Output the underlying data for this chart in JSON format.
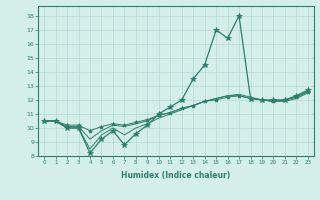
{
  "xlabel": "Humidex (Indice chaleur)",
  "x_values": [
    0,
    1,
    2,
    3,
    4,
    5,
    6,
    7,
    8,
    9,
    10,
    11,
    12,
    13,
    14,
    15,
    16,
    17,
    18,
    19,
    20,
    21,
    22,
    23
  ],
  "lines": [
    {
      "y": [
        10.5,
        10.5,
        10.0,
        10.0,
        8.2,
        9.2,
        9.8,
        8.8,
        9.6,
        10.2,
        11.0,
        11.5,
        12.0,
        13.5,
        14.5,
        17.0,
        16.4,
        18.0,
        12.1,
        12.0,
        12.0,
        12.0,
        12.3,
        12.7
      ],
      "color": "#2e7d6e",
      "marker": "*",
      "markersize": 4,
      "linewidth": 0.9
    },
    {
      "y": [
        10.5,
        10.5,
        10.0,
        10.0,
        8.5,
        9.5,
        10.0,
        9.5,
        10.0,
        10.3,
        10.7,
        11.0,
        11.3,
        11.6,
        11.9,
        12.1,
        12.3,
        12.3,
        12.1,
        12.0,
        11.9,
        11.9,
        12.1,
        12.5
      ],
      "color": "#2e7d6e",
      "marker": null,
      "markersize": 3,
      "linewidth": 0.7
    },
    {
      "y": [
        10.5,
        10.5,
        10.1,
        10.1,
        9.2,
        9.8,
        10.2,
        10.1,
        10.3,
        10.5,
        10.9,
        11.1,
        11.4,
        11.6,
        11.9,
        12.1,
        12.3,
        12.4,
        12.2,
        12.0,
        11.9,
        12.0,
        12.2,
        12.6
      ],
      "color": "#2e7d6e",
      "marker": null,
      "markersize": 3,
      "linewidth": 0.7
    },
    {
      "y": [
        10.5,
        10.5,
        10.2,
        10.2,
        9.8,
        10.1,
        10.3,
        10.2,
        10.4,
        10.6,
        10.9,
        11.1,
        11.4,
        11.6,
        11.9,
        12.0,
        12.2,
        12.3,
        12.1,
        12.0,
        11.9,
        12.0,
        12.2,
        12.6
      ],
      "color": "#2e7d6e",
      "marker": "*",
      "markersize": 3,
      "linewidth": 0.7
    }
  ],
  "xlim": [
    -0.5,
    23.5
  ],
  "ylim": [
    8,
    18.7
  ],
  "yticks": [
    8,
    9,
    10,
    11,
    12,
    13,
    14,
    15,
    16,
    17,
    18
  ],
  "xticks": [
    0,
    1,
    2,
    3,
    4,
    5,
    6,
    7,
    8,
    9,
    10,
    11,
    12,
    13,
    14,
    15,
    16,
    17,
    18,
    19,
    20,
    21,
    22,
    23
  ],
  "grid_color": "#b8d8d4",
  "bg_color": "#d4eeea",
  "line_color": "#2e7d6e",
  "tick_color": "#2e7d6e",
  "label_color": "#2e7d6e"
}
